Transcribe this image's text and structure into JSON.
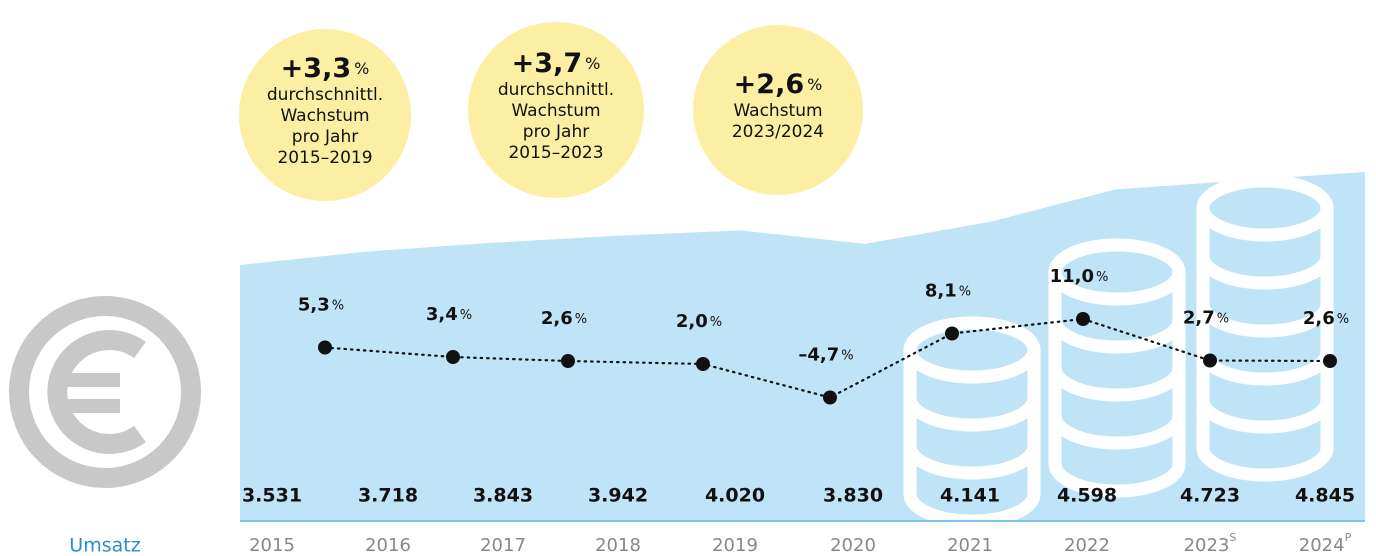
{
  "chart_data": {
    "type": "area_line",
    "categories": [
      "2015",
      "2016",
      "2017",
      "2018",
      "2019",
      "2020",
      "2021",
      "2022",
      "2023",
      "2024"
    ],
    "category_superscripts": [
      null,
      null,
      null,
      null,
      null,
      null,
      null,
      null,
      "S",
      "P"
    ],
    "revenue": {
      "name": "Umsatz",
      "color": "#bfe3f7",
      "values": [
        3531,
        3718,
        3843,
        3942,
        4020,
        3830,
        4141,
        4598,
        4723,
        4845
      ],
      "value_labels": [
        "3.531",
        "3.718",
        "3.843",
        "3.942",
        "4.020",
        "3.830",
        "4.141",
        "4.598",
        "4.723",
        "4.845"
      ]
    },
    "growth": {
      "unit": "%",
      "color": "#111111",
      "values": [
        5.3,
        3.4,
        2.6,
        2.0,
        -4.7,
        8.1,
        11.0,
        2.7,
        2.6
      ],
      "value_labels": [
        "5,3",
        "3,4",
        "2,6",
        "2,0",
        "–4,7",
        "8,1",
        "11,0",
        "2,7",
        "2,6"
      ]
    },
    "bubbles": [
      {
        "value": "+3,3",
        "unit": "%",
        "lines": [
          "durchschnittl.",
          "Wachstum",
          "pro Jahr",
          "2015–2019"
        ]
      },
      {
        "value": "+3,7",
        "unit": "%",
        "lines": [
          "durchschnittl.",
          "Wachstum",
          "pro Jahr",
          "2015–2023"
        ]
      },
      {
        "value": "+2,6",
        "unit": "%",
        "lines": [
          "Wachstum",
          "2023/2024"
        ]
      }
    ]
  }
}
